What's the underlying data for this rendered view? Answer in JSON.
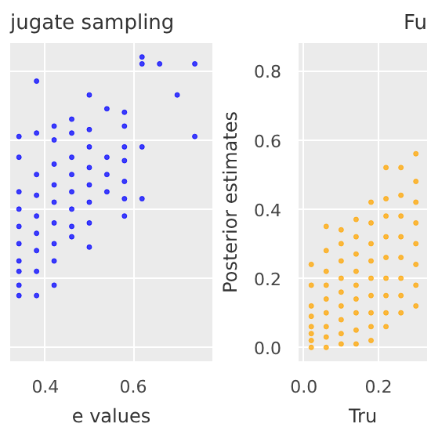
{
  "chart_data": [
    {
      "type": "scatter",
      "title": "jugate sampling",
      "xlabel": "e values",
      "xlim": [
        0.32,
        0.78
      ],
      "ylim": [
        -0.04,
        0.88
      ],
      "xticks": [
        0.4,
        0.6
      ],
      "yticks": [
        0.0,
        0.2,
        0.4,
        0.6,
        0.8
      ],
      "tick_labels": "x",
      "grid": true,
      "marker": "circle",
      "series": [
        {
          "color": "#0000ff",
          "x": [
            0.34,
            0.34,
            0.34,
            0.34,
            0.34,
            0.34,
            0.34,
            0.34,
            0.34,
            0.34,
            0.38,
            0.38,
            0.38,
            0.38,
            0.38,
            0.38,
            0.38,
            0.38,
            0.38,
            0.42,
            0.42,
            0.42,
            0.42,
            0.42,
            0.42,
            0.42,
            0.42,
            0.42,
            0.46,
            0.46,
            0.46,
            0.46,
            0.46,
            0.46,
            0.46,
            0.46,
            0.5,
            0.5,
            0.5,
            0.5,
            0.5,
            0.5,
            0.5,
            0.5,
            0.54,
            0.54,
            0.54,
            0.54,
            0.58,
            0.58,
            0.58,
            0.58,
            0.58,
            0.58,
            0.58,
            0.62,
            0.62,
            0.62,
            0.62,
            0.66,
            0.7,
            0.74,
            0.74
          ],
          "values": [
            0.61,
            0.55,
            0.45,
            0.4,
            0.35,
            0.3,
            0.25,
            0.22,
            0.18,
            0.15,
            0.77,
            0.62,
            0.5,
            0.44,
            0.38,
            0.33,
            0.28,
            0.22,
            0.15,
            0.64,
            0.6,
            0.53,
            0.47,
            0.42,
            0.36,
            0.3,
            0.25,
            0.18,
            0.66,
            0.62,
            0.55,
            0.5,
            0.45,
            0.4,
            0.35,
            0.32,
            0.73,
            0.63,
            0.58,
            0.52,
            0.47,
            0.42,
            0.36,
            0.29,
            0.69,
            0.55,
            0.5,
            0.45,
            0.68,
            0.64,
            0.58,
            0.54,
            0.48,
            0.43,
            0.38,
            0.84,
            0.82,
            0.58,
            0.43,
            0.82,
            0.73,
            0.82,
            0.61
          ]
        }
      ]
    },
    {
      "type": "scatter",
      "title": "Fu",
      "xlabel": "Tru",
      "ylabel": "Posterior estimates",
      "xlim": [
        -0.014,
        0.33
      ],
      "ylim": [
        -0.04,
        0.88
      ],
      "xticks": [
        {
          "value": 0,
          "label": "0.0"
        },
        0.2
      ],
      "yticks": [
        {
          "value": 0,
          "label": "0.0"
        },
        0.2,
        0.4,
        0.6,
        0.8
      ],
      "grid": true,
      "marker": "circle",
      "series": [
        {
          "color": "#ffa500",
          "x": [
            0.02,
            0.02,
            0.02,
            0.02,
            0.02,
            0.02,
            0.02,
            0.02,
            0.06,
            0.06,
            0.06,
            0.06,
            0.06,
            0.06,
            0.06,
            0.06,
            0.06,
            0.1,
            0.1,
            0.1,
            0.1,
            0.1,
            0.1,
            0.1,
            0.1,
            0.1,
            0.14,
            0.14,
            0.14,
            0.14,
            0.14,
            0.14,
            0.14,
            0.14,
            0.14,
            0.18,
            0.18,
            0.18,
            0.18,
            0.18,
            0.18,
            0.18,
            0.18,
            0.18,
            0.22,
            0.22,
            0.22,
            0.22,
            0.22,
            0.22,
            0.22,
            0.22,
            0.22,
            0.26,
            0.26,
            0.26,
            0.26,
            0.26,
            0.26,
            0.26,
            0.26,
            0.3,
            0.3,
            0.3,
            0.3,
            0.3,
            0.3,
            0.3,
            0.3
          ],
          "values": [
            0.0,
            0.02,
            0.04,
            0.06,
            0.09,
            0.12,
            0.18,
            0.24,
            0.0,
            0.03,
            0.06,
            0.1,
            0.14,
            0.18,
            0.22,
            0.28,
            0.35,
            0.01,
            0.04,
            0.08,
            0.12,
            0.16,
            0.2,
            0.25,
            0.3,
            0.34,
            0.01,
            0.05,
            0.1,
            0.14,
            0.18,
            0.22,
            0.27,
            0.32,
            0.37,
            0.02,
            0.06,
            0.1,
            0.15,
            0.2,
            0.25,
            0.3,
            0.36,
            0.42,
            0.06,
            0.1,
            0.15,
            0.2,
            0.26,
            0.32,
            0.38,
            0.43,
            0.52,
            0.1,
            0.15,
            0.2,
            0.26,
            0.32,
            0.38,
            0.44,
            0.52,
            0.12,
            0.18,
            0.24,
            0.3,
            0.36,
            0.42,
            0.48,
            0.56
          ]
        }
      ]
    }
  ]
}
